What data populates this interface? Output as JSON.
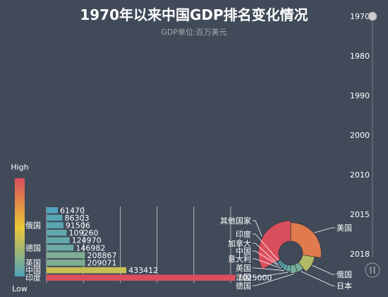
{
  "title": "1970年以来中国GDP排名变化情况",
  "subtitle": "GDP单位:百万美元",
  "timeline": {
    "years": [
      "1970",
      "1980",
      "1990",
      "2000",
      "2010",
      "2015",
      "2018"
    ],
    "current": "1970",
    "play_state": "paused"
  },
  "legend": {
    "high_label": "High",
    "low_label": "Low",
    "gradient_colors": [
      "#50a3ba",
      "#eac736",
      "#d94e5d"
    ]
  },
  "colors": {
    "background": "#404a59",
    "text": "#ffffff",
    "subtitle": "#aaaaaa"
  },
  "chart_data": [
    {
      "type": "bar",
      "orientation": "horizontal",
      "categories": [
        "印度",
        "中国",
        "英国",
        "意大利",
        "德国",
        "加拿大",
        "法国",
        "俄国",
        "日本",
        "美国"
      ],
      "values": [
        1025000,
        433412,
        209071,
        208867,
        146982,
        124970,
        109260,
        91506,
        86303,
        61470
      ],
      "ytick_labels_visible": [
        "印度",
        "中国",
        "英国",
        "德国",
        "俄国"
      ],
      "color_scale": "continuous, low to high"
    },
    {
      "type": "pie",
      "style": "rose",
      "labels": [
        "美国",
        "俄国",
        "日本",
        "德国",
        "法国",
        "英国",
        "意大利",
        "中国",
        "加拿大",
        "印度",
        "其他国家"
      ],
      "values": [
        1025000,
        433412,
        209071,
        208867,
        146982,
        124970,
        109260,
        91506,
        86303,
        61470,
        1245000
      ]
    }
  ]
}
